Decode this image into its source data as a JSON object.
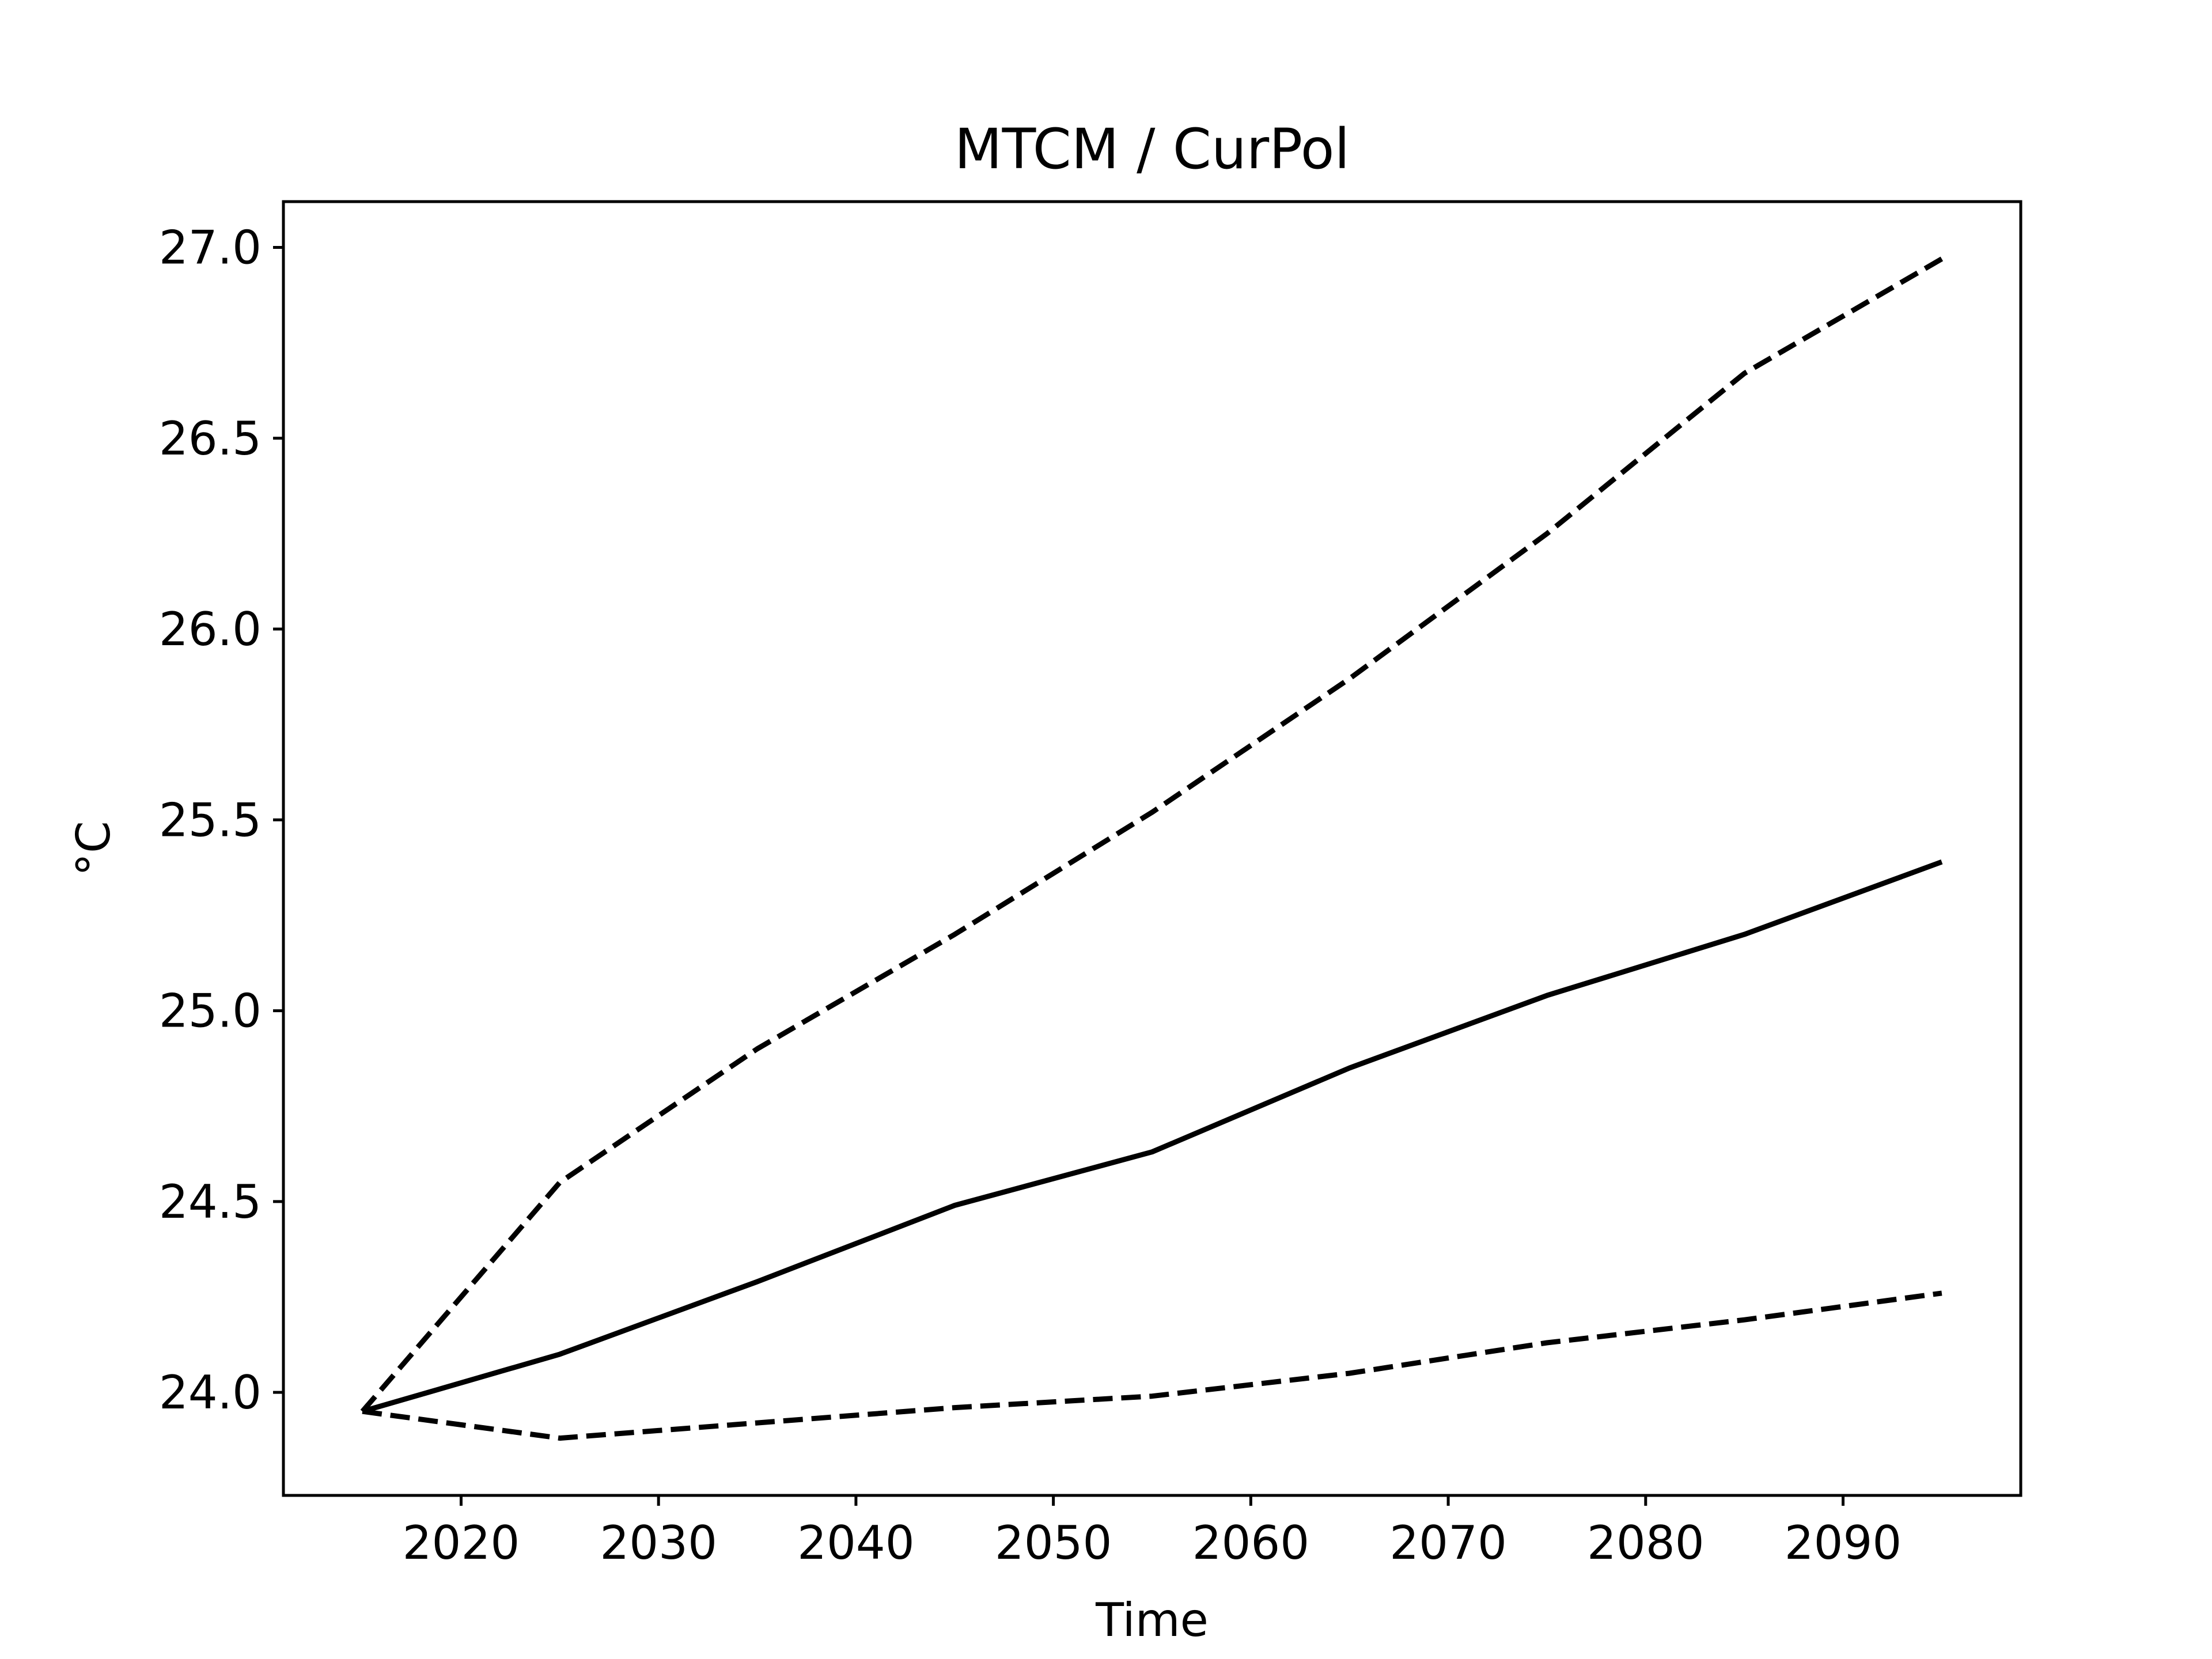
{
  "chart_data": {
    "type": "line",
    "title": "MTCM / CurPol",
    "xlabel": "Time",
    "ylabel": "°C",
    "xlim": [
      2011,
      2099
    ],
    "ylim": [
      23.73,
      27.12
    ],
    "x_ticks": [
      2020,
      2030,
      2040,
      2050,
      2060,
      2070,
      2080,
      2090
    ],
    "y_ticks": [
      24.0,
      24.5,
      25.0,
      25.5,
      26.0,
      26.5,
      27.0
    ],
    "y_tick_labels": [
      "24.0",
      "24.5",
      "25.0",
      "25.5",
      "26.0",
      "26.5",
      "27.0"
    ],
    "grid": false,
    "x": [
      2015,
      2025,
      2035,
      2045,
      2055,
      2065,
      2075,
      2085,
      2095
    ],
    "series": [
      {
        "style": "dashed",
        "values": [
          23.95,
          24.55,
          24.9,
          25.2,
          25.52,
          25.87,
          26.25,
          26.67,
          26.97
        ]
      },
      {
        "style": "solid",
        "values": [
          23.95,
          24.1,
          24.29,
          24.49,
          24.63,
          24.85,
          25.04,
          25.2,
          25.39
        ]
      },
      {
        "style": "dashed",
        "values": [
          23.95,
          23.88,
          23.92,
          23.96,
          23.99,
          24.05,
          24.13,
          24.19,
          24.26
        ]
      }
    ],
    "colors": {
      "line": "#000000",
      "frame": "#000000",
      "background": "#ffffff"
    }
  }
}
